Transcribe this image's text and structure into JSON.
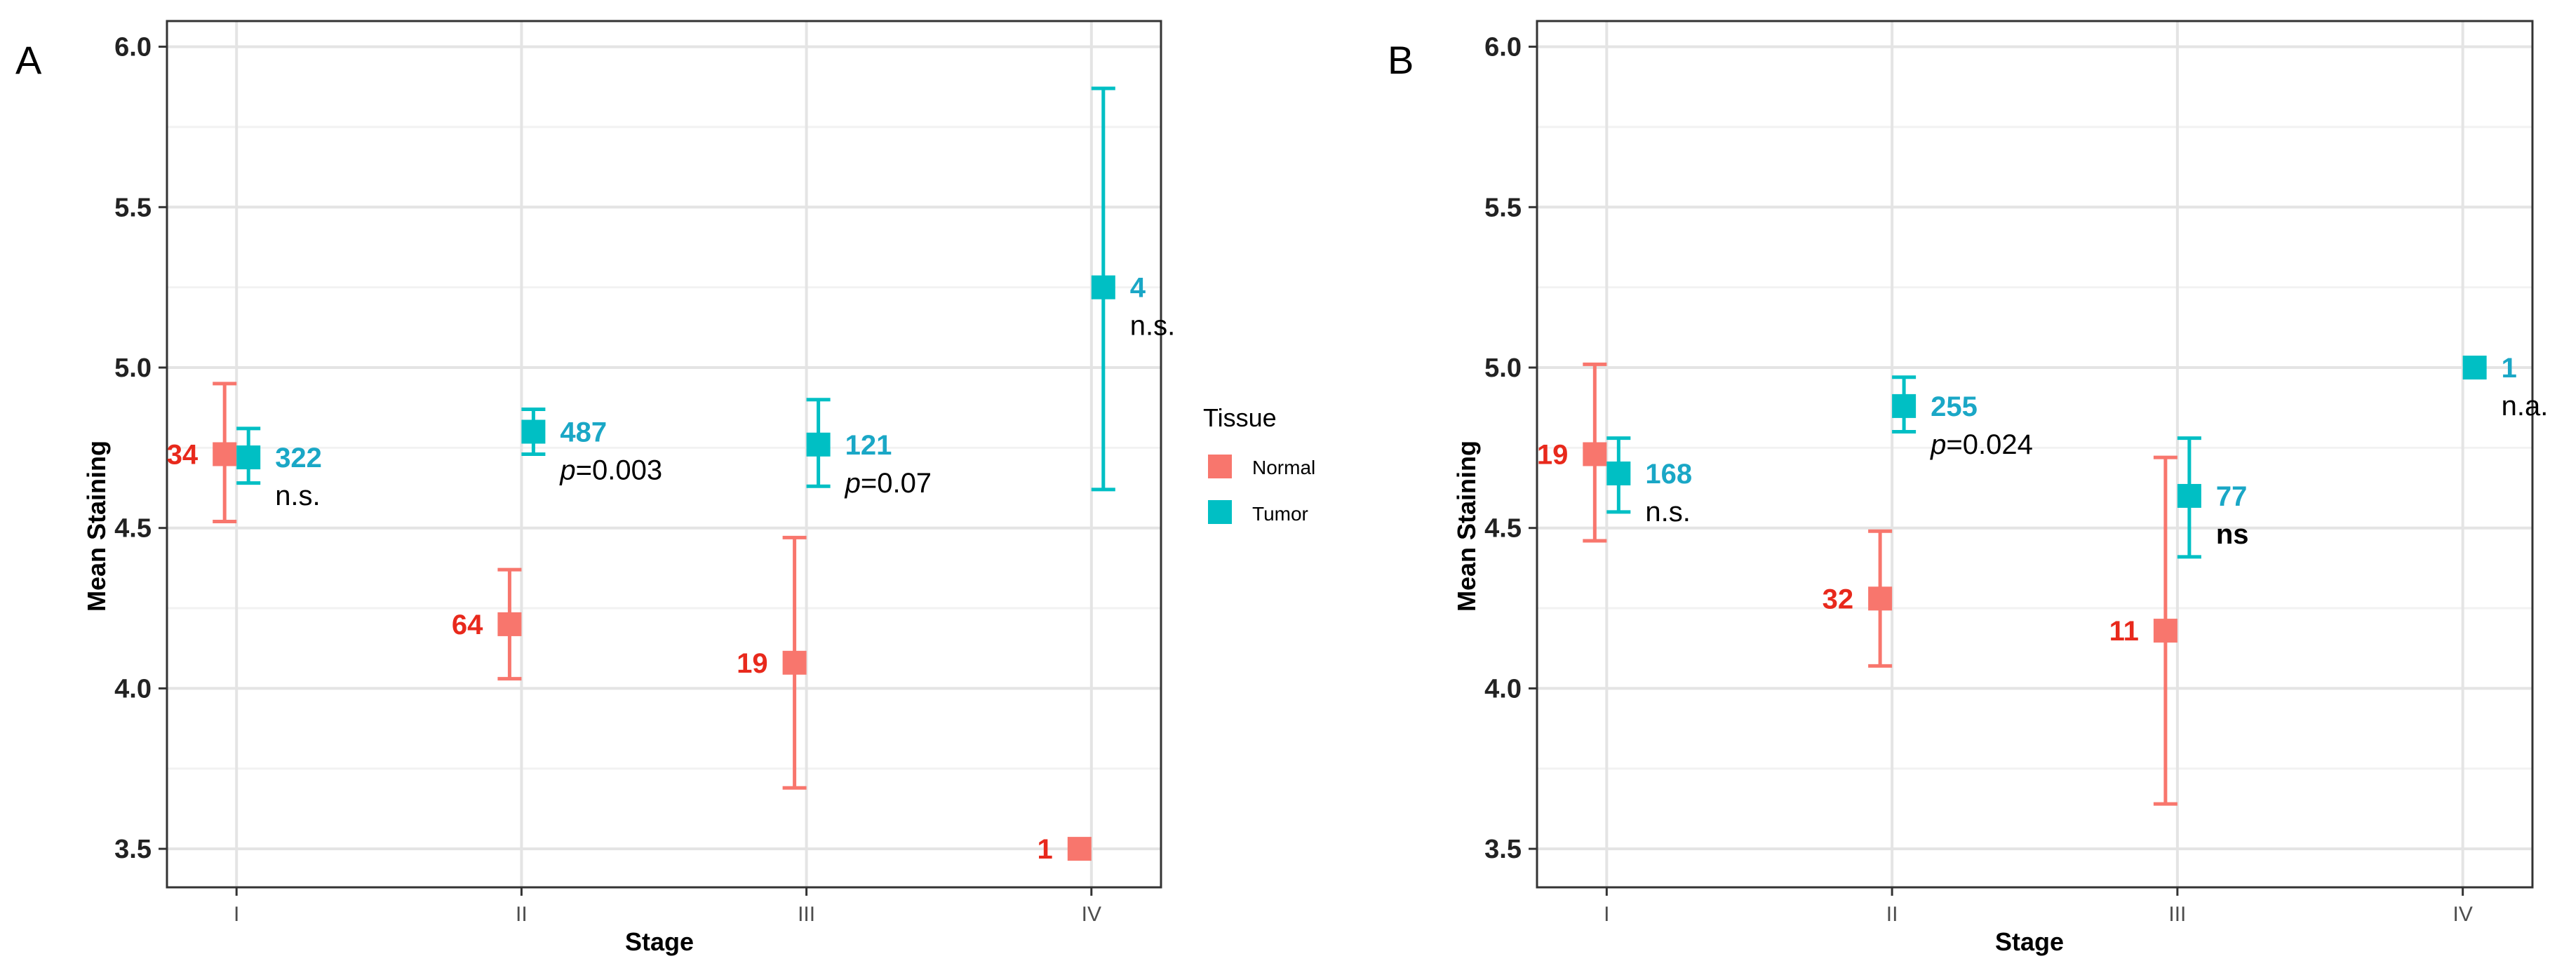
{
  "colors": {
    "normal": "#f8766d",
    "tumor": "#00bfc4",
    "normal_label": "#e8291c",
    "tumor_label": "#1aa7c6",
    "grid_major": "#e4e4e4",
    "grid_minor": "#f2f2f2",
    "axis": "#333333"
  },
  "legend": {
    "title": "Tissue",
    "items": [
      {
        "key": "normal",
        "label": "Normal"
      },
      {
        "key": "tumor",
        "label": "Tumor"
      }
    ]
  },
  "chart_data": [
    {
      "panel": "A",
      "type": "scatter",
      "xlabel": "Stage",
      "ylabel": "Mean Staining",
      "categories": [
        "I",
        "II",
        "III",
        "IV"
      ],
      "ylim": [
        3.38,
        6.08
      ],
      "yticks": [
        "3.5",
        "4.0",
        "4.5",
        "5.0",
        "5.5",
        "6.0"
      ],
      "grid": true,
      "series": [
        {
          "name": "Normal",
          "key": "normal",
          "points": [
            {
              "cat": 0,
              "y": 4.73,
              "lo": 4.52,
              "hi": 4.95,
              "n": "34"
            },
            {
              "cat": 1,
              "y": 4.2,
              "lo": 4.03,
              "hi": 4.37,
              "n": "64"
            },
            {
              "cat": 2,
              "y": 4.08,
              "lo": 3.69,
              "hi": 4.47,
              "n": "19"
            },
            {
              "cat": 3,
              "y": 3.5,
              "lo": null,
              "hi": null,
              "n": "1"
            }
          ]
        },
        {
          "name": "Tumor",
          "key": "tumor",
          "points": [
            {
              "cat": 0,
              "y": 4.72,
              "lo": 4.64,
              "hi": 4.81,
              "n": "322"
            },
            {
              "cat": 1,
              "y": 4.8,
              "lo": 4.73,
              "hi": 4.87,
              "n": "487"
            },
            {
              "cat": 2,
              "y": 4.76,
              "lo": 4.63,
              "hi": 4.9,
              "n": "121"
            },
            {
              "cat": 3,
              "y": 5.25,
              "lo": 4.62,
              "hi": 5.87,
              "n": "4"
            }
          ]
        }
      ],
      "annotations": [
        {
          "cat": 0,
          "text": "n.s.",
          "p": false
        },
        {
          "cat": 1,
          "text": "=0.003",
          "p": true
        },
        {
          "cat": 2,
          "text": "=0.07",
          "p": true
        },
        {
          "cat": 3,
          "text": "n.s.",
          "p": false
        }
      ]
    },
    {
      "panel": "B",
      "type": "scatter",
      "xlabel": "Stage",
      "ylabel": "Mean Staining",
      "categories": [
        "I",
        "II",
        "III",
        "IV"
      ],
      "ylim": [
        3.38,
        6.08
      ],
      "yticks": [
        "3.5",
        "4.0",
        "4.5",
        "5.0",
        "5.5",
        "6.0"
      ],
      "grid": true,
      "series": [
        {
          "name": "Normal",
          "key": "normal",
          "points": [
            {
              "cat": 0,
              "y": 4.73,
              "lo": 4.46,
              "hi": 5.01,
              "n": "19"
            },
            {
              "cat": 1,
              "y": 4.28,
              "lo": 4.07,
              "hi": 4.49,
              "n": "32"
            },
            {
              "cat": 2,
              "y": 4.18,
              "lo": 3.64,
              "hi": 4.72,
              "n": "11"
            }
          ]
        },
        {
          "name": "Tumor",
          "key": "tumor",
          "points": [
            {
              "cat": 0,
              "y": 4.67,
              "lo": 4.55,
              "hi": 4.78,
              "n": "168"
            },
            {
              "cat": 1,
              "y": 4.88,
              "lo": 4.8,
              "hi": 4.97,
              "n": "255"
            },
            {
              "cat": 2,
              "y": 4.6,
              "lo": 4.41,
              "hi": 4.78,
              "n": "77"
            },
            {
              "cat": 3,
              "y": 5.0,
              "lo": null,
              "hi": null,
              "n": "1"
            }
          ]
        }
      ],
      "annotations": [
        {
          "cat": 0,
          "text": "n.s.",
          "p": false
        },
        {
          "cat": 1,
          "text": "=0.024",
          "p": true
        },
        {
          "cat": 2,
          "text": "ns",
          "p": false,
          "bold": true
        },
        {
          "cat": 3,
          "text": "n.a.",
          "p": false
        }
      ]
    }
  ]
}
